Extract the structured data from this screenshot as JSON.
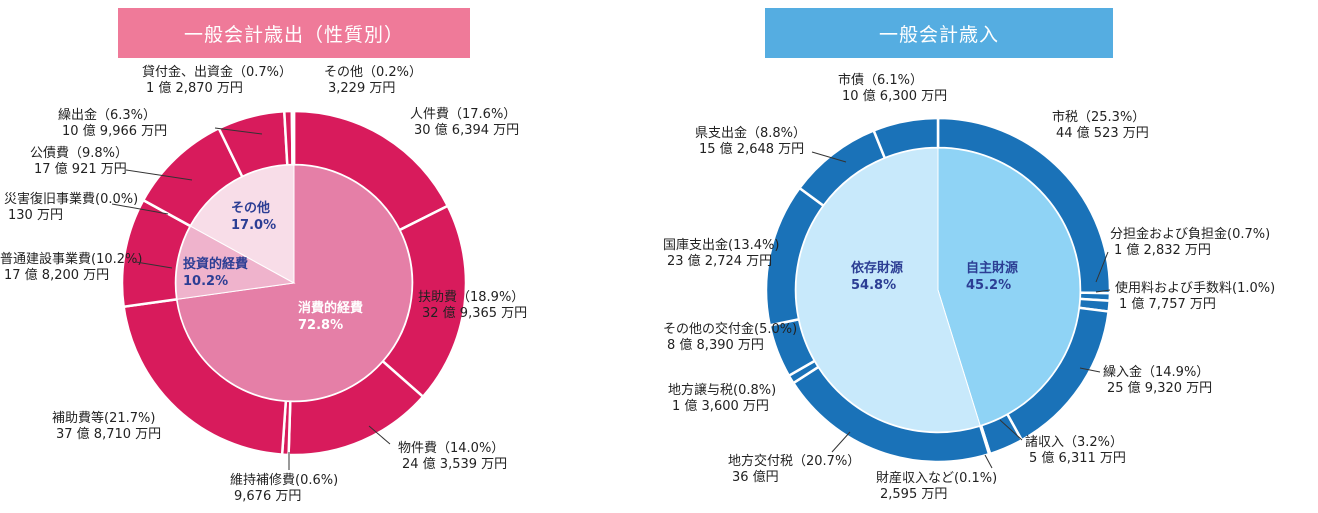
{
  "chart_data": [
    {
      "type": "pie",
      "title": "一般会計歳出（性質別）",
      "colors": {
        "outer": "#d81b5c",
        "inner": [
          "#e57fa7",
          "#efb3cc",
          "#f8dde8"
        ]
      },
      "outer": [
        {
          "name": "人件費",
          "pct_text": "（17.6%）",
          "pct": 17.6,
          "amount": "30 億 6,394 万円"
        },
        {
          "name": "扶助費",
          "pct_text": "（18.9%）",
          "pct": 18.9,
          "amount": "32 億 9,365 万円"
        },
        {
          "name": "物件費",
          "pct_text": "（14.0%）",
          "pct": 14.0,
          "amount": "24 億 3,539 万円"
        },
        {
          "name": "維持補修費",
          "pct_text": "(0.6%)",
          "pct": 0.6,
          "amount": "9,676 万円"
        },
        {
          "name": "補助費等",
          "pct_text": "(21.7%)",
          "pct": 21.7,
          "amount": "37 億 8,710 万円"
        },
        {
          "name": "普通建設事業費",
          "pct_text": "(10.2%)",
          "pct": 10.2,
          "amount": "17 億 8,200 万円"
        },
        {
          "name": "災害復旧事業費",
          "pct_text": "(0.0%)",
          "pct": 0.0,
          "amount": "130 万円"
        },
        {
          "name": "公債費",
          "pct_text": "（9.8%）",
          "pct": 9.8,
          "amount": "17 億 921 万円"
        },
        {
          "name": "繰出金",
          "pct_text": "（6.3%）",
          "pct": 6.3,
          "amount": "10 億 9,966 万円"
        },
        {
          "name": "貸付金、出資金",
          "pct_text": "（0.7%）",
          "pct": 0.7,
          "amount": "1 億 2,870 万円"
        },
        {
          "name": "その他",
          "pct_text": "（0.2%）",
          "pct": 0.2,
          "amount": "3,229 万円"
        }
      ],
      "inner": [
        {
          "name": "消費的経費",
          "pct_text": "72.8%",
          "pct": 72.8
        },
        {
          "name": "投資的経費",
          "pct_text": "10.2%",
          "pct": 10.2
        },
        {
          "name": "その他",
          "pct_text": "17.0%",
          "pct": 17.0
        }
      ]
    },
    {
      "type": "pie",
      "title": "一般会計歳入",
      "colors": {
        "outer": "#1a72b8",
        "inner": [
          "#8fd3f5",
          "#c8e9fb"
        ]
      },
      "outer": [
        {
          "name": "市税",
          "pct_text": "（25.3%）",
          "pct": 25.3,
          "amount": "44 億 523 万円"
        },
        {
          "name": "分担金および負担金",
          "pct_text": "(0.7%)",
          "pct": 0.7,
          "amount": "1 億 2,832 万円"
        },
        {
          "name": "使用料および手数料",
          "pct_text": "(1.0%)",
          "pct": 1.0,
          "amount": "1 億 7,757 万円"
        },
        {
          "name": "繰入金",
          "pct_text": "（14.9%）",
          "pct": 14.9,
          "amount": "25 億 9,320 万円"
        },
        {
          "name": "諸収入",
          "pct_text": "（3.2%）",
          "pct": 3.2,
          "amount": "5 億 6,311 万円"
        },
        {
          "name": "財産収入など",
          "pct_text": "(0.1%)",
          "pct": 0.1,
          "amount": "2,595 万円"
        },
        {
          "name": "地方交付税",
          "pct_text": "（20.7%）",
          "pct": 20.7,
          "amount": "36 億円"
        },
        {
          "name": "地方譲与税",
          "pct_text": "(0.8%)",
          "pct": 0.8,
          "amount": "1 億 3,600 万円"
        },
        {
          "name": "その他の交付金",
          "pct_text": "(5.0%)",
          "pct": 5.0,
          "amount": "8 億 8,390 万円"
        },
        {
          "name": "国庫支出金",
          "pct_text": "(13.4%)",
          "pct": 13.4,
          "amount": "23 億 2,724 万円"
        },
        {
          "name": "県支出金",
          "pct_text": "（8.8%）",
          "pct": 8.8,
          "amount": "15 億 2,648 万円"
        },
        {
          "name": "市債",
          "pct_text": "（6.1%）",
          "pct": 6.1,
          "amount": "10 億 6,300 万円"
        }
      ],
      "inner": [
        {
          "name": "自主財源",
          "pct_text": "45.2%",
          "pct": 45.2
        },
        {
          "name": "依存財源",
          "pct_text": "54.8%",
          "pct": 54.8
        }
      ]
    }
  ]
}
